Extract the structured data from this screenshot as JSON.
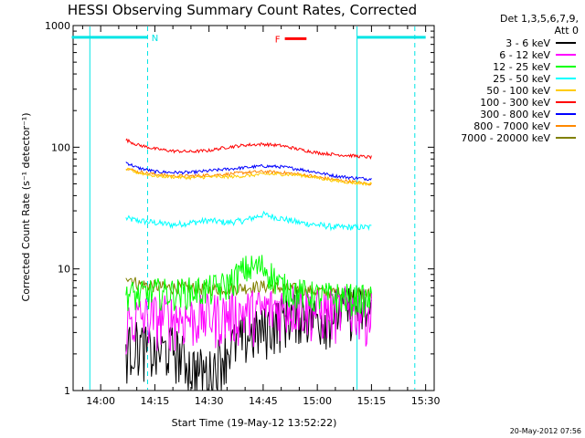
{
  "chart_data": {
    "type": "line",
    "title": "HESSI Observing Summary Count Rates, Corrected",
    "xlabel": "Start Time (19-May-12 13:52:22)",
    "ylabel": "Corrected Count Rate (s⁻¹ detector⁻¹)",
    "y_scale": "log",
    "ylim": [
      1,
      1000
    ],
    "xlim": [
      "13:52:22",
      "15:32:22"
    ],
    "x_ticks": [
      "14:00",
      "14:15",
      "14:30",
      "14:45",
      "15:00",
      "15:15",
      "15:30"
    ],
    "y_ticks": [
      "1",
      "10",
      "100",
      "1000"
    ],
    "legend_header": [
      "Det 1,3,5,6,7,9,",
      "Att 0"
    ],
    "legend_position": "right",
    "footer_timestamp": "20-May-2012 07:56",
    "flag_markers": [
      {
        "label": "N",
        "color": "#00e5e5",
        "segments": [
          [
            "13:52",
            "14:13"
          ],
          [
            "15:11",
            "15:30"
          ]
        ],
        "level": 800
      },
      {
        "label": "F",
        "color": "#ff0000",
        "segments": [
          [
            "14:51",
            "14:57"
          ]
        ],
        "level": 780
      }
    ],
    "vertical_lines": [
      {
        "time": "13:57",
        "color": "#00e5e5",
        "style": "solid"
      },
      {
        "time": "14:13",
        "color": "#00e5e5",
        "style": "dashed"
      },
      {
        "time": "15:11",
        "color": "#00e5e5",
        "style": "solid"
      },
      {
        "time": "15:27",
        "color": "#00e5e5",
        "style": "dashed"
      }
    ],
    "data_span": [
      "14:07",
      "15:15"
    ],
    "x": [
      "14:07",
      "14:10",
      "14:15",
      "14:20",
      "14:25",
      "14:30",
      "14:35",
      "14:40",
      "14:45",
      "14:50",
      "14:55",
      "15:00",
      "15:05",
      "15:10",
      "15:14"
    ],
    "series": [
      {
        "name": "3 - 6 keV",
        "color": "#000000",
        "values": [
          2.2,
          2.5,
          2.0,
          2.3,
          1.6,
          1.4,
          2.2,
          2.8,
          3.2,
          4.0,
          4.6,
          4.0,
          4.5,
          5.0,
          4.2
        ]
      },
      {
        "name": "6 - 12 keV",
        "color": "#ff00ff",
        "values": [
          3.6,
          4.0,
          4.1,
          4.1,
          4.0,
          4.2,
          4.3,
          4.5,
          4.6,
          5.0,
          5.2,
          4.5,
          4.6,
          5.0,
          4.4
        ]
      },
      {
        "name": "12 - 25 keV",
        "color": "#00ff00",
        "values": [
          6.5,
          6.0,
          6.5,
          6.4,
          6.6,
          6.8,
          7.4,
          10.0,
          10.5,
          7.2,
          6.4,
          6.0,
          6.0,
          5.8,
          5.6
        ]
      },
      {
        "name": "25 - 50 keV",
        "color": "#00ffff",
        "values": [
          26,
          25,
          24,
          23,
          24,
          25,
          24,
          25,
          28,
          26,
          24,
          23,
          22,
          22,
          22
        ]
      },
      {
        "name": "50 - 100 keV",
        "color": "#ffcc00",
        "values": [
          66,
          62,
          58,
          57,
          56,
          57,
          57,
          58,
          60,
          60,
          59,
          56,
          53,
          51,
          50
        ]
      },
      {
        "name": "100 - 300 keV",
        "color": "#ff0000",
        "values": [
          115,
          105,
          97,
          93,
          92,
          94,
          100,
          104,
          106,
          103,
          96,
          90,
          87,
          85,
          83
        ]
      },
      {
        "name": "300 - 800 keV",
        "color": "#0000ff",
        "values": [
          75,
          68,
          63,
          62,
          62,
          64,
          66,
          68,
          70,
          69,
          66,
          62,
          58,
          56,
          55
        ]
      },
      {
        "name": "800 - 7000 keV",
        "color": "#ff8800",
        "values": [
          68,
          63,
          60,
          58,
          58,
          59,
          60,
          62,
          63,
          62,
          60,
          57,
          54,
          52,
          50
        ]
      },
      {
        "name": "7000 - 20000 keV",
        "color": "#808000",
        "values": [
          9.0,
          7.6,
          7.2,
          7.0,
          7.0,
          6.8,
          6.9,
          7.0,
          7.2,
          7.0,
          6.8,
          6.6,
          6.4,
          6.3,
          6.2
        ]
      }
    ]
  }
}
